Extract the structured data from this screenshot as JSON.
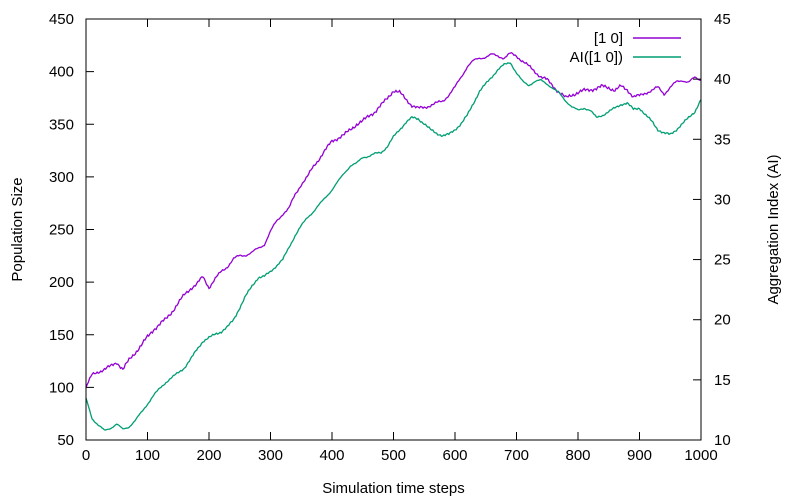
{
  "chart_data": {
    "type": "line",
    "xlabel": "Simulation time steps",
    "ylabel": "Population Size",
    "y2label": "Aggregation Index (AI)",
    "xlim": [
      0,
      1000
    ],
    "ylim": [
      50,
      450
    ],
    "y2lim": [
      10,
      45
    ],
    "xticks": [
      0,
      100,
      200,
      300,
      400,
      500,
      600,
      700,
      800,
      900,
      1000
    ],
    "yticks": [
      50,
      100,
      150,
      200,
      250,
      300,
      350,
      400,
      450
    ],
    "y2ticks": [
      10,
      15,
      20,
      25,
      30,
      35,
      40,
      45
    ],
    "grid": false,
    "legend_position": "top-right",
    "series": [
      {
        "name": "[1 0]",
        "axis": "left",
        "color": "#9400d3",
        "x": [
          0,
          10,
          20,
          30,
          40,
          50,
          60,
          70,
          80,
          90,
          100,
          110,
          120,
          130,
          140,
          150,
          160,
          170,
          180,
          190,
          200,
          210,
          220,
          230,
          240,
          250,
          260,
          270,
          280,
          290,
          300,
          310,
          320,
          330,
          340,
          350,
          360,
          370,
          380,
          390,
          400,
          410,
          420,
          430,
          440,
          450,
          460,
          470,
          480,
          490,
          500,
          510,
          520,
          530,
          540,
          550,
          560,
          570,
          580,
          590,
          600,
          610,
          620,
          630,
          640,
          650,
          660,
          670,
          680,
          690,
          700,
          710,
          720,
          730,
          740,
          750,
          760,
          770,
          780,
          790,
          800,
          810,
          820,
          830,
          840,
          850,
          860,
          870,
          880,
          890,
          900,
          910,
          920,
          930,
          940,
          950,
          960,
          970,
          980,
          990,
          1000
        ],
        "values": [
          100,
          112,
          115,
          117,
          120,
          124,
          117,
          126,
          133,
          140,
          148,
          155,
          160,
          165,
          172,
          180,
          188,
          194,
          198,
          205,
          195,
          203,
          210,
          215,
          222,
          225,
          226,
          228,
          232,
          236,
          248,
          258,
          265,
          270,
          283,
          293,
          300,
          310,
          318,
          326,
          334,
          337,
          340,
          345,
          350,
          353,
          358,
          362,
          368,
          375,
          382,
          380,
          374,
          368,
          365,
          366,
          368,
          370,
          372,
          378,
          385,
          395,
          405,
          410,
          413,
          414,
          416,
          415,
          413,
          417,
          415,
          410,
          405,
          400,
          395,
          392,
          386,
          380,
          375,
          378,
          380,
          382,
          383,
          384,
          386,
          385,
          382,
          386,
          383,
          376,
          377,
          380,
          382,
          385,
          379,
          385,
          390,
          392,
          390,
          394,
          392
        ]
      },
      {
        "name": "AI([1 0])",
        "axis": "right",
        "color": "#009e73",
        "x": [
          0,
          10,
          20,
          30,
          40,
          50,
          60,
          70,
          80,
          90,
          100,
          110,
          120,
          130,
          140,
          150,
          160,
          170,
          180,
          190,
          200,
          210,
          220,
          230,
          240,
          250,
          260,
          270,
          280,
          290,
          300,
          310,
          320,
          330,
          340,
          350,
          360,
          370,
          380,
          390,
          400,
          410,
          420,
          430,
          440,
          450,
          460,
          470,
          480,
          490,
          500,
          510,
          520,
          530,
          540,
          550,
          560,
          570,
          580,
          590,
          600,
          610,
          620,
          630,
          640,
          650,
          660,
          670,
          680,
          690,
          700,
          710,
          720,
          730,
          740,
          750,
          760,
          770,
          780,
          790,
          800,
          810,
          820,
          830,
          840,
          850,
          860,
          870,
          880,
          890,
          900,
          910,
          920,
          930,
          940,
          950,
          960,
          970,
          980,
          990,
          1000
        ],
        "values": [
          13.5,
          11.8,
          11.2,
          10.8,
          11.0,
          11.3,
          10.9,
          11.1,
          11.6,
          12.3,
          13.0,
          13.7,
          14.3,
          14.8,
          15.2,
          15.6,
          16.0,
          16.7,
          17.5,
          18.2,
          18.5,
          18.8,
          19.0,
          19.4,
          20.0,
          21.0,
          22.0,
          22.8,
          23.5,
          23.6,
          24.0,
          24.5,
          25.0,
          26.0,
          27.0,
          27.8,
          28.5,
          29.0,
          29.6,
          30.2,
          30.8,
          31.5,
          32.2,
          32.8,
          33.0,
          33.5,
          33.6,
          33.8,
          33.9,
          34.4,
          35.2,
          35.8,
          36.4,
          36.8,
          36.7,
          36.3,
          35.8,
          35.5,
          35.3,
          35.4,
          35.8,
          36.3,
          37.0,
          38.0,
          39.0,
          39.6,
          40.2,
          40.8,
          41.2,
          41.4,
          40.5,
          39.8,
          39.5,
          39.8,
          39.9,
          39.6,
          39.2,
          38.8,
          38.2,
          37.7,
          37.4,
          37.6,
          37.4,
          36.8,
          37.0,
          37.3,
          37.6,
          37.9,
          38.0,
          37.5,
          37.6,
          37.0,
          36.5,
          35.8,
          35.5,
          35.4,
          35.8,
          36.3,
          36.8,
          37.3,
          38.3
        ]
      }
    ]
  }
}
